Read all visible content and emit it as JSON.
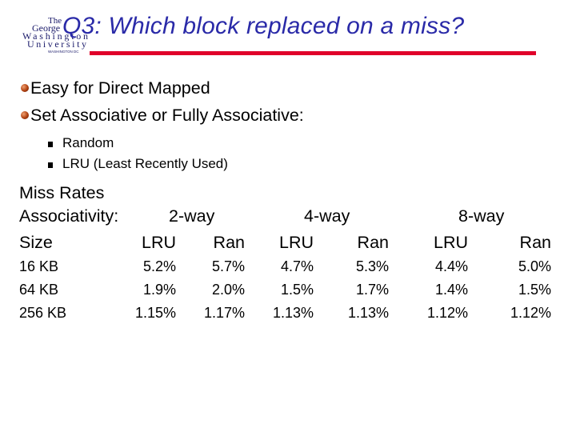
{
  "logo": {
    "lines": [
      "The",
      "George",
      "Washington",
      "University",
      "WASHINGTON DC"
    ]
  },
  "title": "Q3: Which block replaced on a miss?",
  "colors": {
    "title": "#2a2aa8",
    "rule": "#e0002a",
    "bullet_ball": "#b04010"
  },
  "bullets": [
    {
      "text": "Easy for Direct Mapped",
      "sub": []
    },
    {
      "text": "Set Associative or Fully Associative:",
      "sub": [
        "Random",
        "LRU (Least Recently Used)"
      ]
    }
  ],
  "miss_rates": {
    "heading": "Miss Rates",
    "associativity_label": "Associativity:",
    "ways": [
      "2-way",
      "4-way",
      "8-way"
    ],
    "columns": [
      "Size",
      "LRU",
      "Ran",
      "LRU",
      "Ran",
      "LRU",
      "Ran"
    ],
    "rows": [
      {
        "size": "16 KB",
        "values": [
          "5.2%",
          "5.7%",
          "4.7%",
          "5.3%",
          "4.4%",
          "5.0%"
        ]
      },
      {
        "size": "64 KB",
        "values": [
          "1.9%",
          "2.0%",
          "1.5%",
          "1.7%",
          "1.4%",
          "1.5%"
        ]
      },
      {
        "size": "256 KB",
        "values": [
          "1.15%",
          "1.17%",
          "1.13%",
          "1.13%",
          "1.12%",
          "1.12%"
        ]
      }
    ]
  }
}
